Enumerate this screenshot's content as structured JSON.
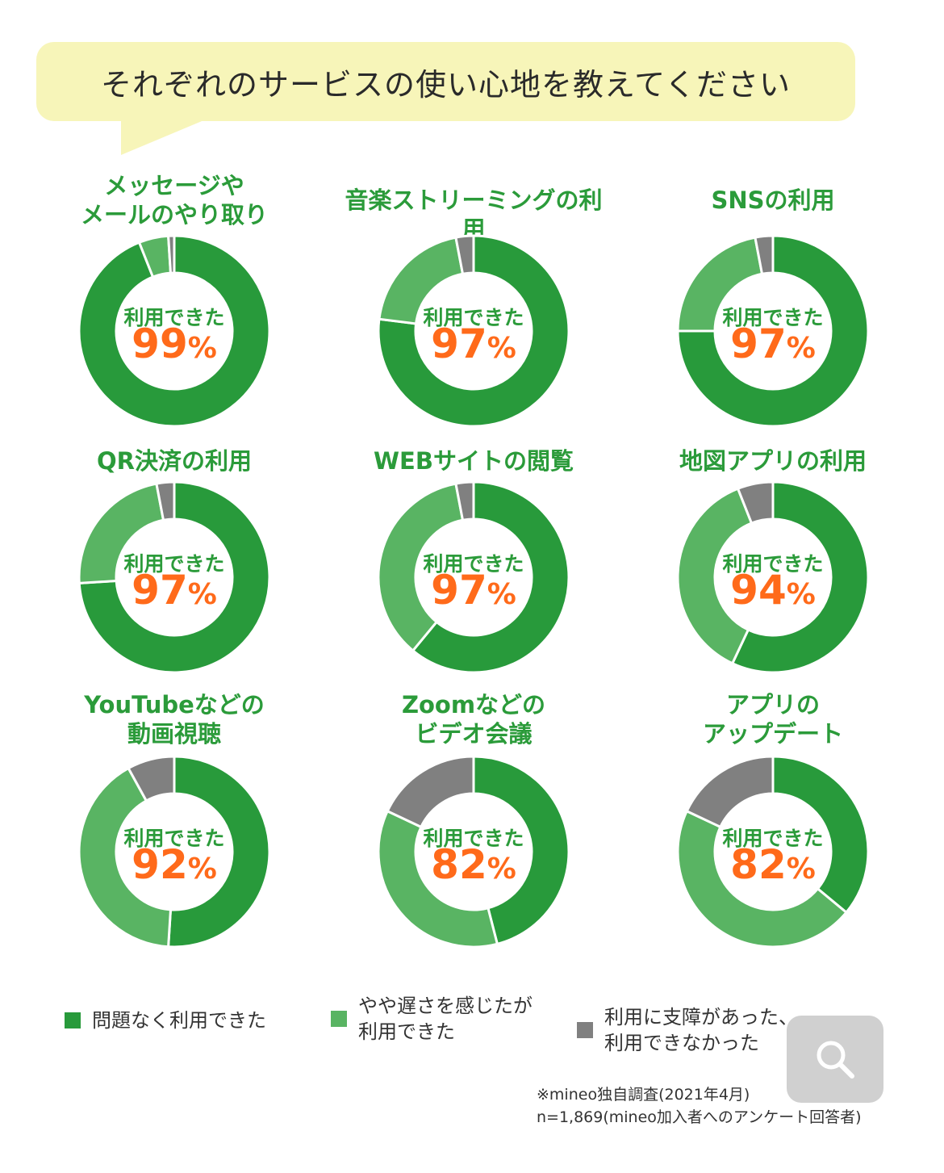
{
  "header": {
    "title": "それぞれのサービスの使い心地を教えてください"
  },
  "colors": {
    "dark_green": "#289a3b",
    "light_green": "#59b463",
    "gray": "#808080",
    "title_green": "#2b9b3a",
    "pct_orange": "#ff6a1a"
  },
  "chart_data": [
    {
      "type": "pie",
      "title": "メッセージや\nメールのやり取り",
      "center_label": "利用できた",
      "center_value": "99",
      "center_unit": "%",
      "values": [
        94,
        5,
        1
      ]
    },
    {
      "type": "pie",
      "title": "音楽ストリーミングの利用",
      "center_label": "利用できた",
      "center_value": "97",
      "center_unit": "%",
      "values": [
        77,
        20,
        3
      ]
    },
    {
      "type": "pie",
      "title": "SNSの利用",
      "center_label": "利用できた",
      "center_value": "97",
      "center_unit": "%",
      "values": [
        75,
        22,
        3
      ]
    },
    {
      "type": "pie",
      "title": "QR決済の利用",
      "center_label": "利用できた",
      "center_value": "97",
      "center_unit": "%",
      "values": [
        74,
        23,
        3
      ]
    },
    {
      "type": "pie",
      "title": "WEBサイトの閲覧",
      "center_label": "利用できた",
      "center_value": "97",
      "center_unit": "%",
      "values": [
        61,
        36,
        3
      ]
    },
    {
      "type": "pie",
      "title": "地図アプリの利用",
      "center_label": "利用できた",
      "center_value": "94",
      "center_unit": "%",
      "values": [
        57,
        37,
        6
      ]
    },
    {
      "type": "pie",
      "title": "YouTubeなどの\n動画視聴",
      "center_label": "利用できた",
      "center_value": "92",
      "center_unit": "%",
      "values": [
        51,
        41,
        8
      ]
    },
    {
      "type": "pie",
      "title": "Zoomなどの\nビデオ会議",
      "center_label": "利用できた",
      "center_value": "82",
      "center_unit": "%",
      "values": [
        46,
        36,
        18
      ]
    },
    {
      "type": "pie",
      "title": "アプリの\nアップデート",
      "center_label": "利用できた",
      "center_value": "82",
      "center_unit": "%",
      "values": [
        36,
        46,
        18
      ]
    }
  ],
  "legend": [
    {
      "label": "問題なく利用できた",
      "color": "#289a3b"
    },
    {
      "label": "やや遅さを感じたが\n利用できた",
      "color": "#59b463"
    },
    {
      "label": "利用に支障があった、\n利用できなかった",
      "color": "#808080"
    }
  ],
  "note": "※mineo独自調査(2021年4月)\nn=1,869(mineo加入者へのアンケート回答者)",
  "icons": {
    "search": "search-icon"
  }
}
